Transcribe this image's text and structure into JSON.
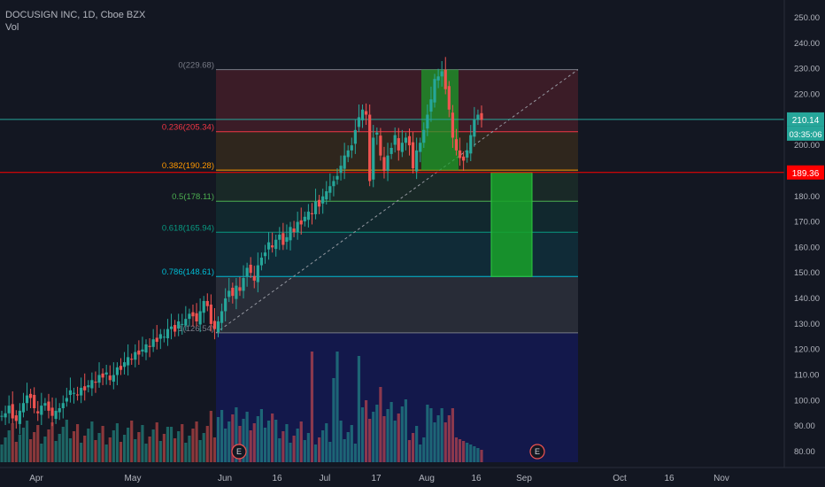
{
  "header": {
    "symbol_title": "DOCUSIGN INC, 1D, Cboe BZX",
    "volume_label": "Vol"
  },
  "colors": {
    "background": "#131722",
    "up": "#26a69a",
    "down": "#ef5350",
    "fib_line_0": "#787b86",
    "fib_line_0236": "#f23645",
    "fib_line_0382": "#ff9800",
    "fib_line_05": "#4caf50",
    "fib_line_0618": "#089981",
    "fib_line_0786": "#00bcd4",
    "fib_line_1": "#787b86",
    "target_box": "#19a22a",
    "entry_box": "#19a22a",
    "price_line_red": "#ff0000",
    "price_line_teal": "#26a69a"
  },
  "price_axis": {
    "ticks": [
      "250.00",
      "240.00",
      "230.00",
      "220.00",
      "210.00",
      "200.00",
      "190.00",
      "180.00",
      "170.00",
      "160.00",
      "150.00",
      "140.00",
      "130.00",
      "120.00",
      "110.00",
      "100.00",
      "90.00",
      "80.00"
    ],
    "current_price": "210.14",
    "countdown": "03:35:06",
    "alert_price": "189.36"
  },
  "time_axis": {
    "labels": [
      "Apr",
      "May",
      "Jun",
      "16",
      "Jul",
      "17",
      "Aug",
      "16",
      "Sep",
      "Oct",
      "16",
      "Nov"
    ]
  },
  "earnings_markers": [
    {
      "label": "E"
    },
    {
      "label": "E"
    }
  ],
  "fib_levels": [
    {
      "ratio": 0,
      "price": 229.68,
      "label": "0(229.68)"
    },
    {
      "ratio": 0.236,
      "price": 205.34,
      "label": "0.236(205.34)"
    },
    {
      "ratio": 0.382,
      "price": 190.28,
      "label": "0.382(190.28)"
    },
    {
      "ratio": 0.5,
      "price": 178.11,
      "label": "0.5(178.11)"
    },
    {
      "ratio": 0.618,
      "price": 165.94,
      "label": "0.618(165.94)"
    },
    {
      "ratio": 0.786,
      "price": 148.61,
      "label": "0.786(148.61)"
    },
    {
      "ratio": 1,
      "price": 126.54,
      "label": "1(126.54)"
    }
  ],
  "chart_data": {
    "type": "candlestick",
    "title": "DOCUSIGN INC, 1D, Cboe BZX",
    "ylim": [
      77,
      255
    ],
    "price_unit": "USD",
    "candles_close": [
      94,
      95,
      98,
      93,
      92,
      96,
      99,
      102,
      101,
      97,
      95,
      98,
      99,
      96,
      94,
      96,
      97,
      99,
      101,
      104,
      103,
      102,
      105,
      104,
      106,
      108,
      107,
      110,
      109,
      111,
      108,
      110,
      113,
      112,
      115,
      117,
      116,
      119,
      118,
      120,
      122,
      121,
      124,
      123,
      126,
      125,
      128,
      129,
      127,
      131,
      130,
      132,
      134,
      133,
      131,
      135,
      139,
      137,
      130,
      128,
      131,
      135,
      140,
      143,
      141,
      145,
      143,
      148,
      152,
      150,
      147,
      153,
      156,
      158,
      162,
      160,
      163,
      165,
      161,
      164,
      168,
      166,
      170,
      169,
      172,
      174,
      173,
      178,
      176,
      180,
      182,
      184,
      186,
      188,
      192,
      196,
      198,
      200,
      206,
      211,
      214,
      212,
      186,
      203,
      205,
      196,
      190,
      196,
      199,
      204,
      198,
      201,
      203,
      200,
      191,
      198,
      201,
      206,
      212,
      218,
      226,
      227,
      229,
      222,
      214,
      203,
      198,
      195,
      194,
      198,
      204,
      210,
      212,
      210
    ],
    "volume_profile_note": "volume bars shown at bottom",
    "fib_retracement": {
      "high": 229.68,
      "low": 126.54
    },
    "horizontal_lines": [
      210.14,
      189.36
    ]
  }
}
